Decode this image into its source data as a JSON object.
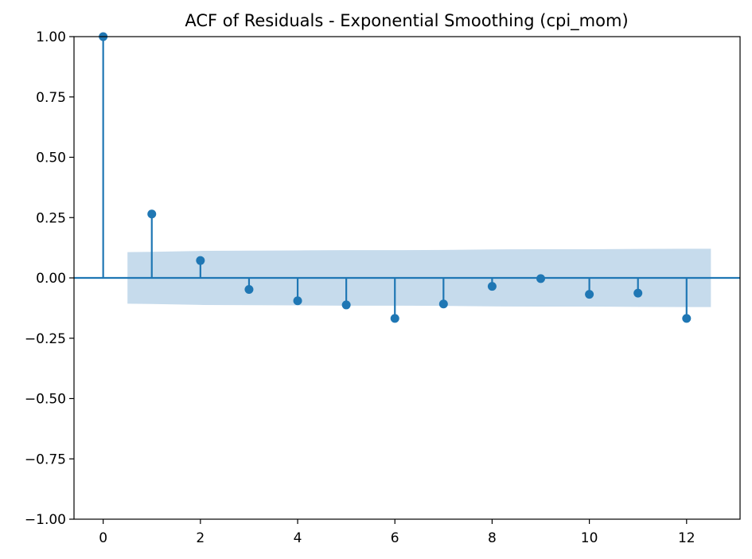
{
  "chart_data": {
    "type": "stem",
    "title": "ACF of Residuals - Exponential Smoothing (cpi_mom)",
    "xlabel": "",
    "ylabel": "",
    "xlim": [
      -0.6,
      13.1
    ],
    "ylim": [
      -1.0,
      1.0
    ],
    "x_ticks": [
      0,
      2,
      4,
      6,
      8,
      10,
      12
    ],
    "y_ticks": [
      1.0,
      0.75,
      0.5,
      0.25,
      0.0,
      -0.25,
      -0.5,
      -0.75,
      -1.0
    ],
    "y_tick_labels": [
      "1.00",
      "0.75",
      "0.50",
      "0.25",
      "0.00",
      "−0.25",
      "−0.50",
      "−0.75",
      "−1.00"
    ],
    "x_tick_labels": [
      "0",
      "2",
      "4",
      "6",
      "8",
      "10",
      "12"
    ],
    "lags": [
      0,
      1,
      2,
      3,
      4,
      5,
      6,
      7,
      8,
      9,
      10,
      11,
      12
    ],
    "acf": [
      1.0,
      0.265,
      0.072,
      -0.048,
      -0.095,
      -0.112,
      -0.168,
      -0.108,
      -0.035,
      -0.003,
      -0.068,
      -0.063,
      -0.168
    ],
    "confidence_band": {
      "x": [
        0.5,
        1,
        2,
        3,
        4,
        5,
        6,
        7,
        8,
        9,
        10,
        11,
        12,
        12.5
      ],
      "upper": [
        0.107,
        0.108,
        0.112,
        0.113,
        0.114,
        0.115,
        0.115,
        0.116,
        0.118,
        0.119,
        0.119,
        0.12,
        0.121,
        0.121
      ]
    },
    "grid": false,
    "colors": {
      "stem": "#1f77b4",
      "band": "#c6dbec",
      "axis": "#000000"
    }
  }
}
